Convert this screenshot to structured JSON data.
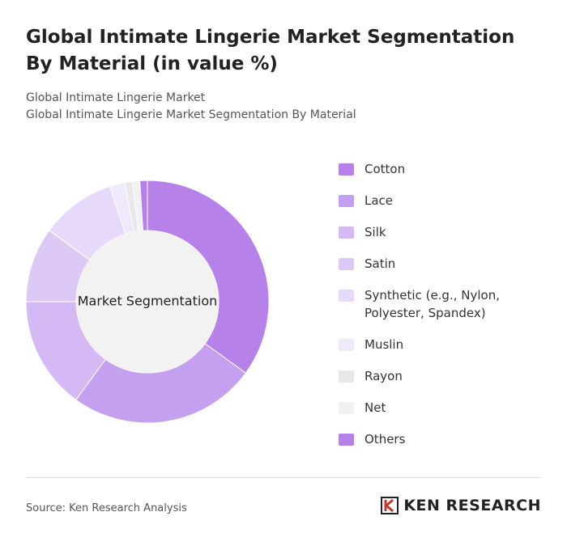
{
  "chart_data": {
    "type": "donut",
    "title": "Global Intimate Lingerie Market Segmentation By Material (in value %)",
    "subtitle": [
      "Global Intimate Lingerie Market",
      "Global Intimate Lingerie Market Segmentation By Material"
    ],
    "center_label": "Market Segmentation",
    "categories": [
      "Cotton",
      "Lace",
      "Silk",
      "Satin",
      "Synthetic (e.g., Nylon, Polyester, Spandex)",
      "Muslin",
      "Rayon",
      "Net",
      "Others"
    ],
    "values": [
      35,
      25,
      15,
      10,
      10,
      2,
      1,
      1,
      1
    ],
    "colors": [
      "#b682ea",
      "#c6a0f0",
      "#d5b9f4",
      "#ddc9f6",
      "#e7d9f9",
      "#f0e9fb",
      "#e8e8e8",
      "#f1f1f1",
      "#b682ea"
    ],
    "source": "Source: Ken Research Analysis",
    "logo": "KEN RESEARCH"
  }
}
